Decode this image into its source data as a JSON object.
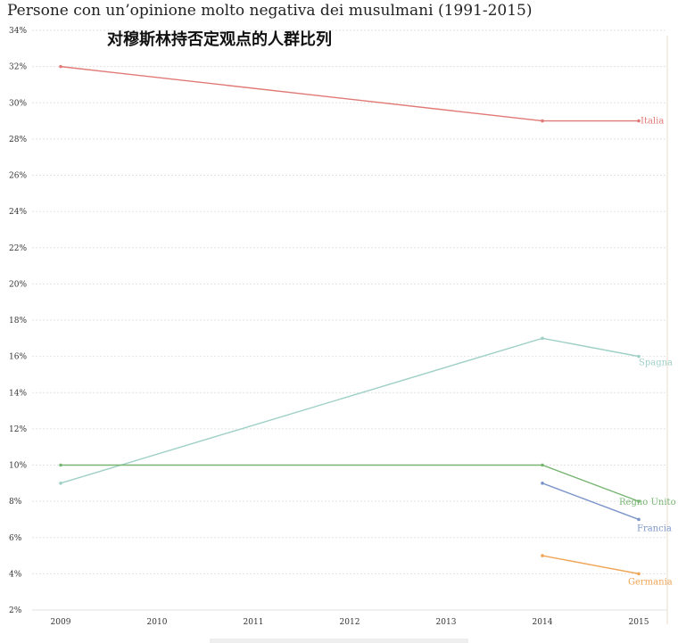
{
  "chart_data": {
    "type": "line",
    "title": "Persone con un’opinione molto negativa dei musulmani (1991-2015)",
    "subtitle": "对穆斯林持否定观点的人群比列",
    "x": [
      "2009",
      "2010",
      "2011",
      "2012",
      "2013",
      "2014",
      "2015"
    ],
    "y_ticks": [
      "2%",
      "4%",
      "6%",
      "8%",
      "10%",
      "12%",
      "14%",
      "16%",
      "18%",
      "20%",
      "22%",
      "24%",
      "26%",
      "28%",
      "30%",
      "32%",
      "34%"
    ],
    "ylim": [
      2,
      34
    ],
    "grid": true,
    "series": [
      {
        "name": "Italia",
        "color": "#e07a76",
        "points": [
          [
            2009,
            32
          ],
          [
            2014,
            29
          ],
          [
            2015,
            29
          ]
        ]
      },
      {
        "name": "Spagna",
        "color": "#9fd0c6",
        "points": [
          [
            2009,
            9
          ],
          [
            2014,
            17
          ],
          [
            2015,
            16
          ]
        ]
      },
      {
        "name": "Regno Unito",
        "color": "#78b573",
        "points": [
          [
            2009,
            10
          ],
          [
            2014,
            10
          ],
          [
            2015,
            8
          ]
        ]
      },
      {
        "name": "Francia",
        "color": "#7b95c8",
        "points": [
          [
            2014,
            9
          ],
          [
            2015,
            7
          ]
        ]
      },
      {
        "name": "Germania",
        "color": "#f0a455",
        "points": [
          [
            2014,
            5
          ],
          [
            2015,
            4
          ]
        ]
      }
    ]
  }
}
